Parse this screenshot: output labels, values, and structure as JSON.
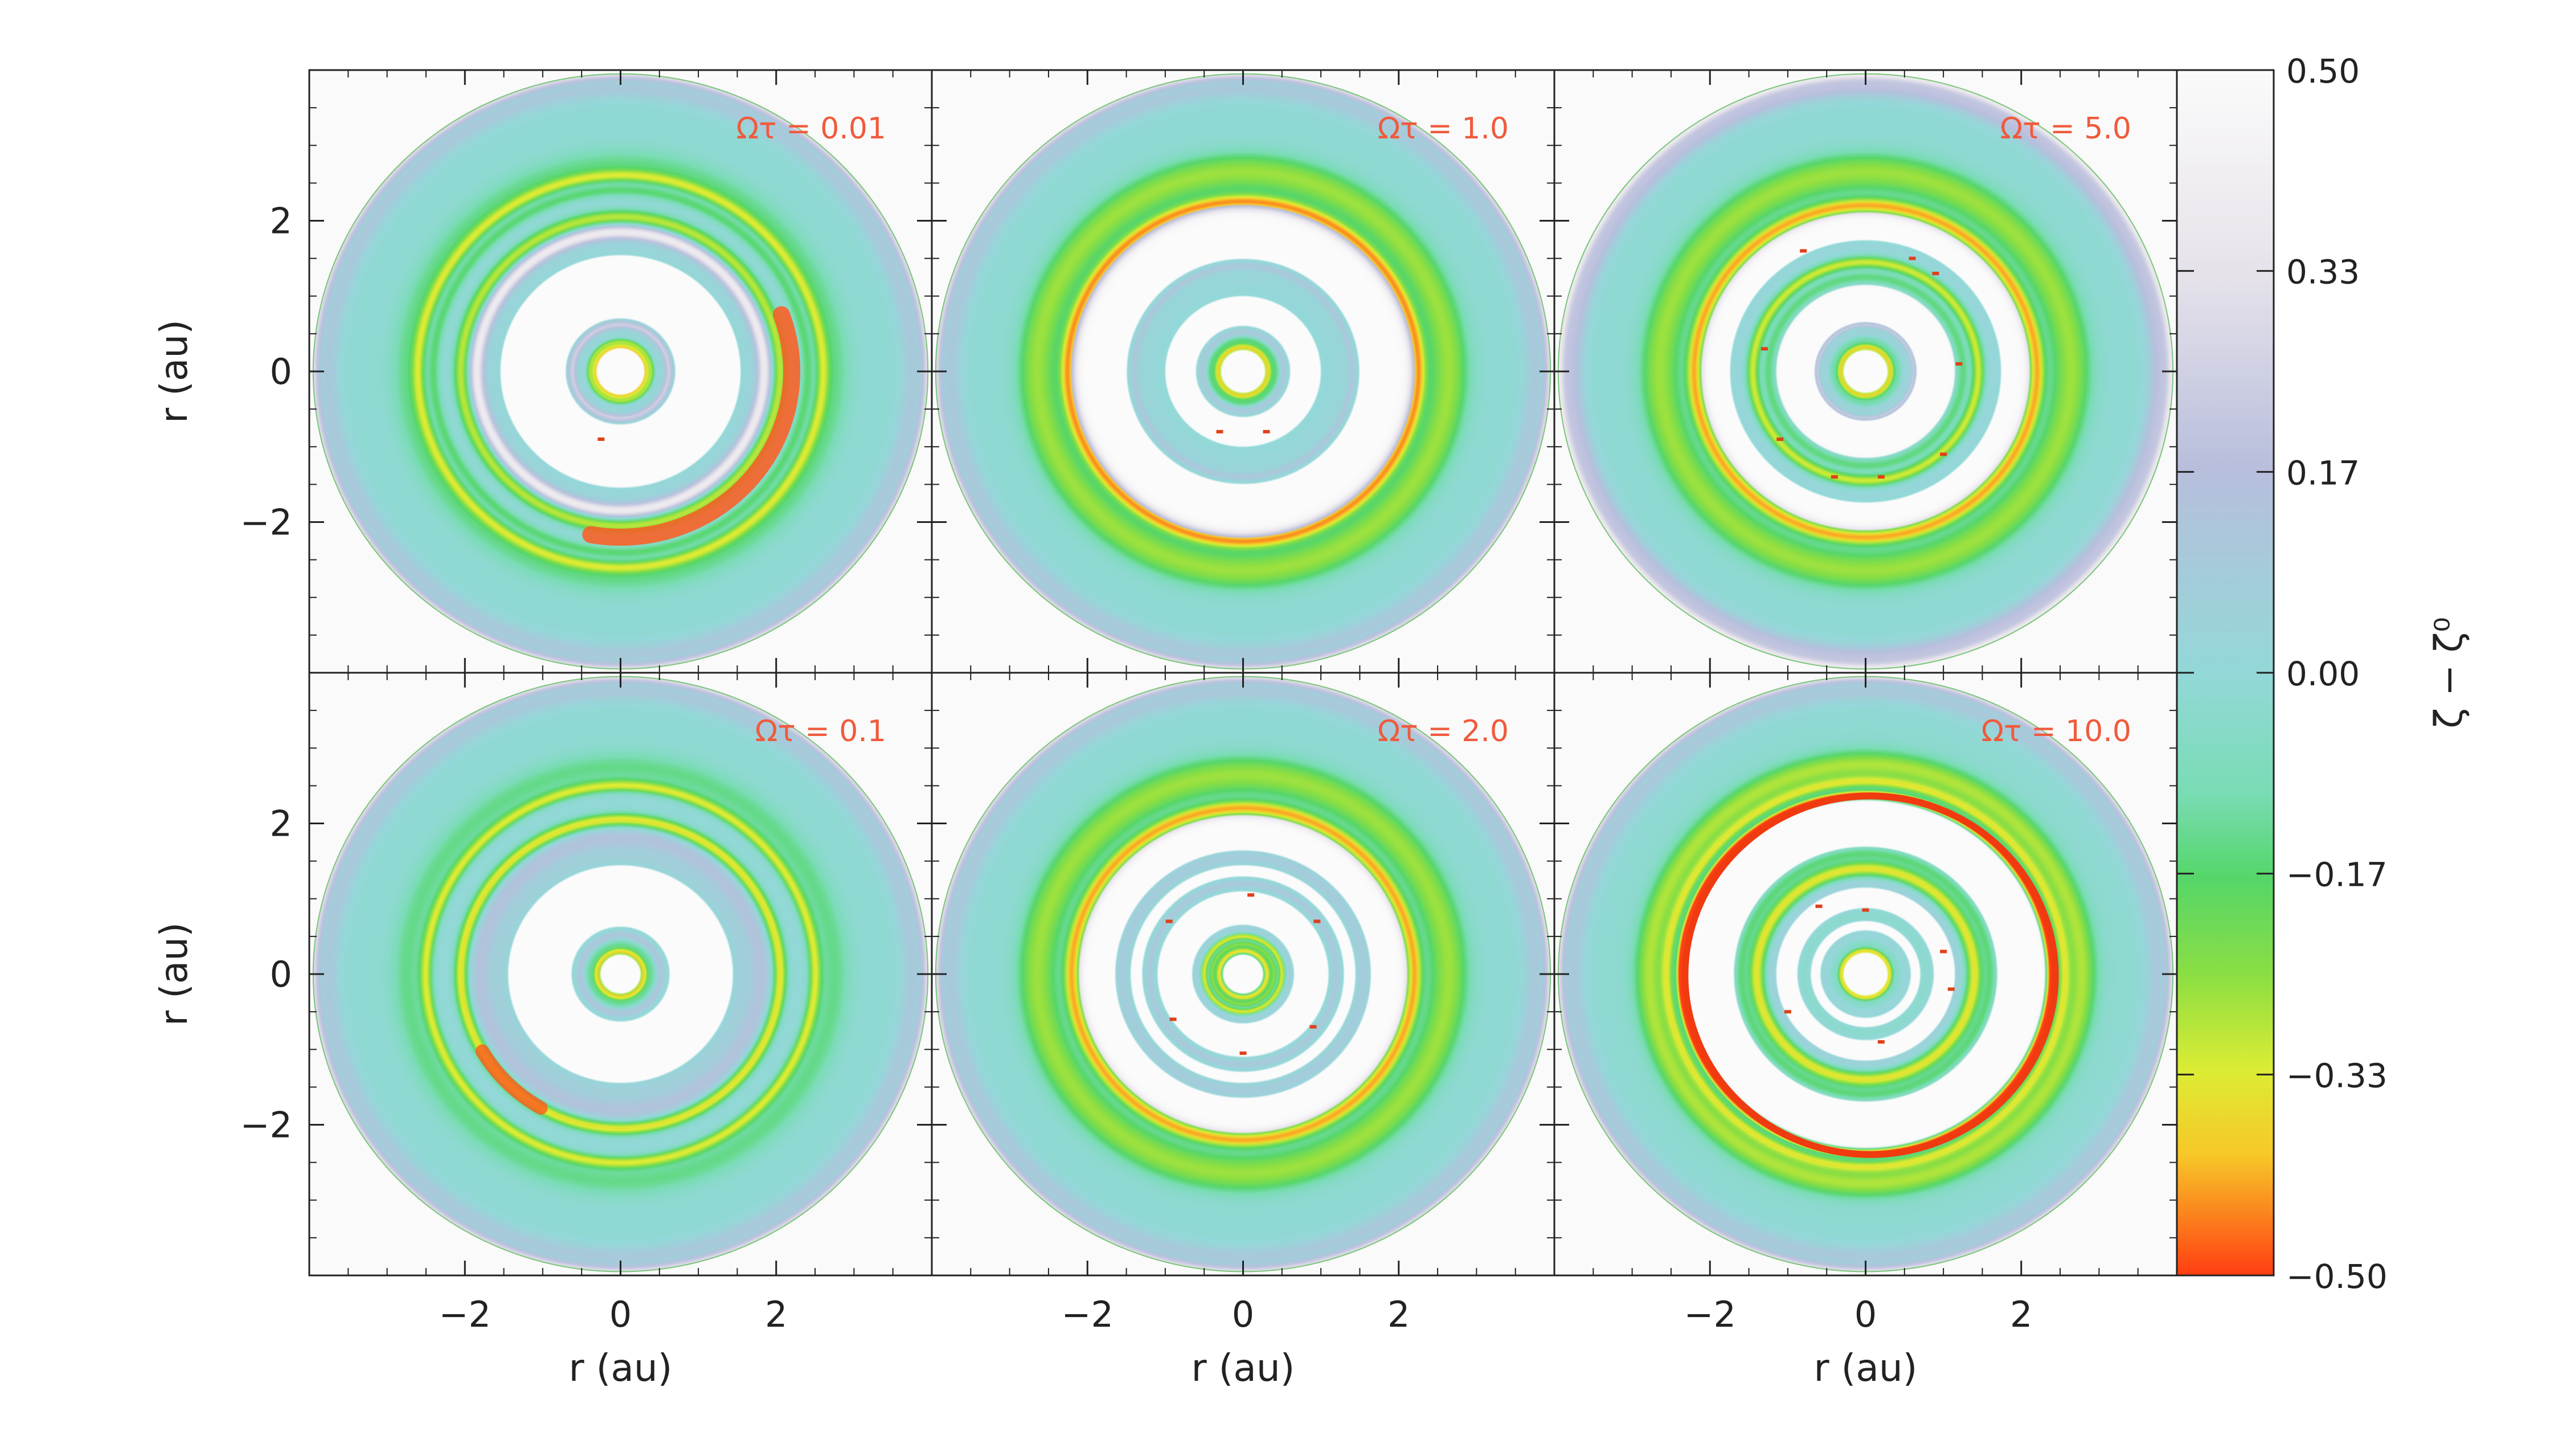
{
  "chart_data": {
    "type": "heatmap",
    "description_units": "polar maps of zeta minus zeta^0 versus position, r in au",
    "x_label": "r (au)",
    "y_label": "r (au)",
    "x_ticks": [
      "−2",
      "0",
      "2"
    ],
    "y_ticks": [
      "2",
      "0",
      "−2"
    ],
    "xlim": [
      -4,
      4
    ],
    "ylim": [
      -4,
      4
    ],
    "colorbar": {
      "label": "ζ − ζ⁰",
      "range": [
        -0.5,
        0.5
      ],
      "ticks": [
        "0.50",
        "0.33",
        "0.17",
        "0.00",
        "−0.17",
        "−0.33",
        "−0.50"
      ],
      "stops": [
        {
          "v": 0.5,
          "c": "#fbfbfb"
        },
        {
          "v": 0.33,
          "c": "#e6e2ea"
        },
        {
          "v": 0.17,
          "c": "#b8bedc"
        },
        {
          "v": 0.0,
          "c": "#93d8d8"
        },
        {
          "v": -0.1,
          "c": "#79dcb4"
        },
        {
          "v": -0.17,
          "c": "#55d669"
        },
        {
          "v": -0.25,
          "c": "#8ade43"
        },
        {
          "v": -0.33,
          "c": "#dcec34"
        },
        {
          "v": -0.4,
          "c": "#f7c828"
        },
        {
          "v": -0.5,
          "c": "#ff3d12"
        }
      ]
    },
    "panels": [
      {
        "label": "Ωτ  =  0.01",
        "row": 0,
        "col": 0
      },
      {
        "label": "Ωτ  =  1.0",
        "row": 0,
        "col": 1
      },
      {
        "label": "Ωτ  =  5.0",
        "row": 0,
        "col": 2
      },
      {
        "label": "Ωτ  =  0.1",
        "row": 1,
        "col": 0
      },
      {
        "label": "Ωτ  =  2.0",
        "row": 1,
        "col": 1
      },
      {
        "label": "Ωτ  =  10.0",
        "row": 1,
        "col": 2
      }
    ],
    "label_color": "#f05a3c"
  }
}
